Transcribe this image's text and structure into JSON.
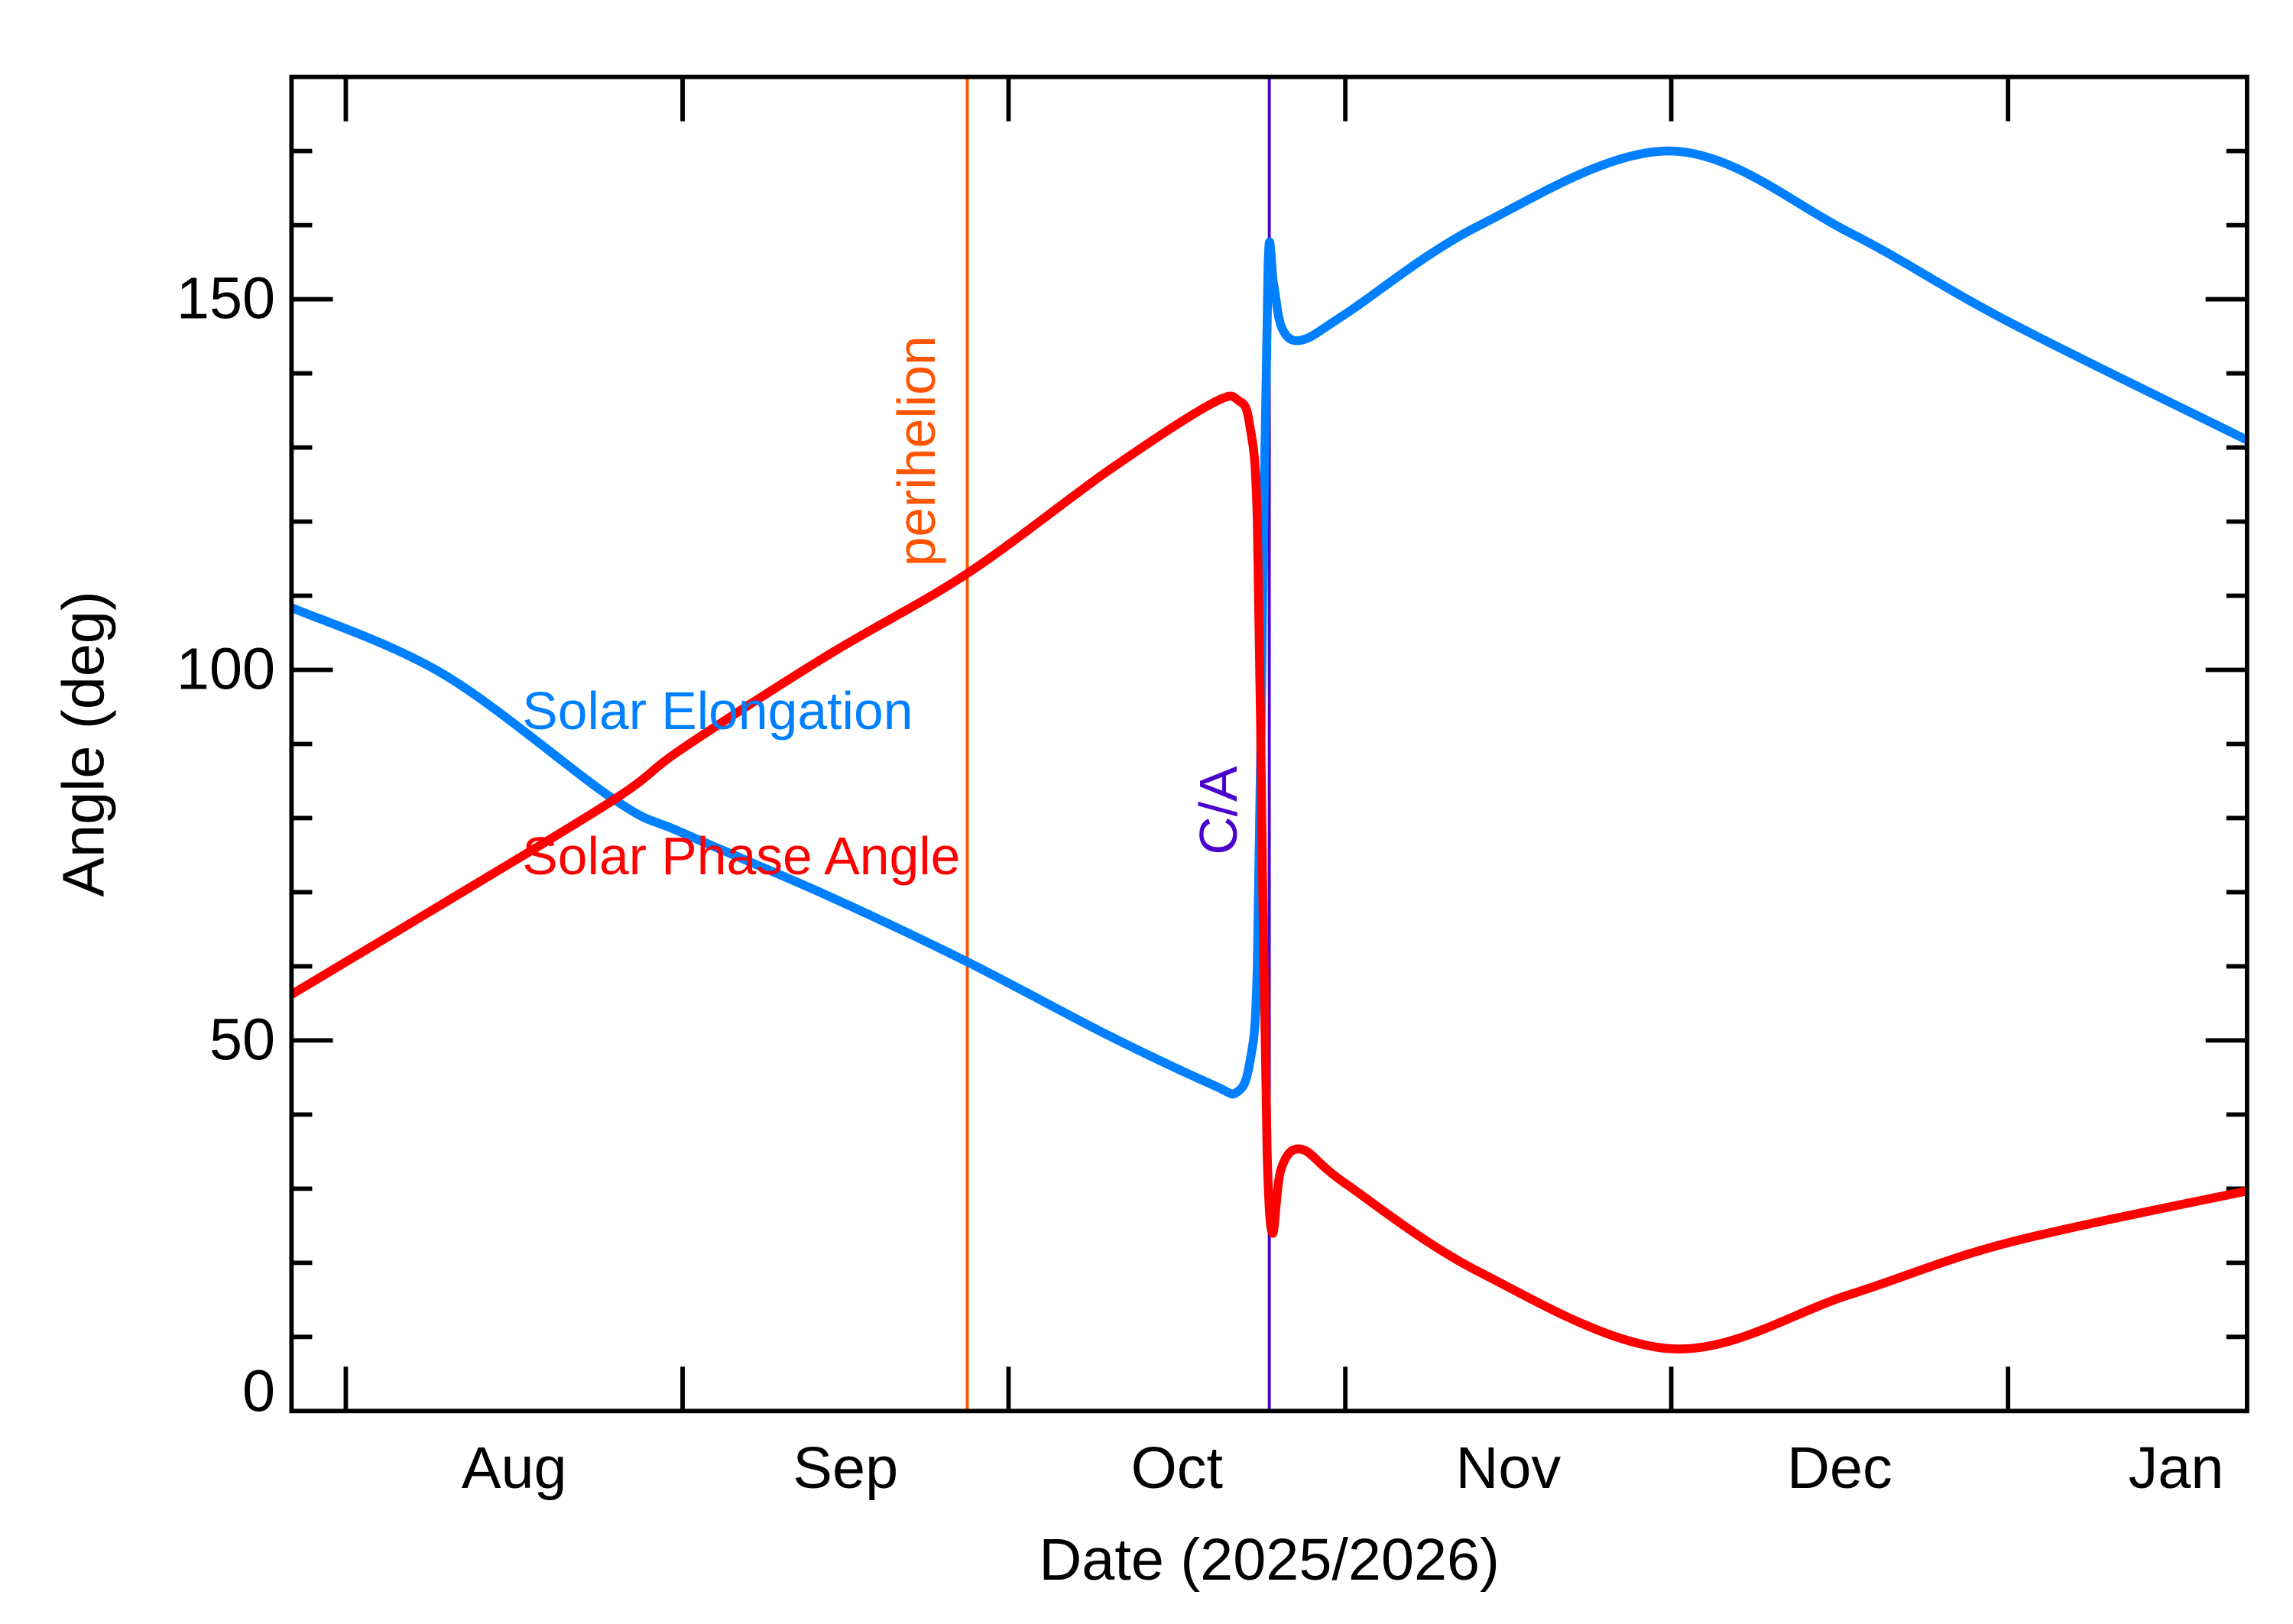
{
  "chart_data": {
    "type": "line",
    "title": "",
    "xlabel": "Date (2025/2026)",
    "ylabel": "Angle (deg)",
    "x_units": "days since 2025-07-27",
    "xlim": [
      0,
      180
    ],
    "ylim": [
      0,
      180
    ],
    "y_major_ticks": [
      0,
      50,
      100,
      150
    ],
    "y_minor_step": 10,
    "x_ticks": [
      {
        "label": "Aug",
        "start_day": 5,
        "end_day": 36
      },
      {
        "label": "Sep",
        "start_day": 36,
        "end_day": 66
      },
      {
        "label": "Oct",
        "start_day": 66,
        "end_day": 97
      },
      {
        "label": "Nov",
        "start_day": 97,
        "end_day": 127
      },
      {
        "label": "Dec",
        "start_day": 127,
        "end_day": 158
      },
      {
        "label": "Jan",
        "start_day": 158,
        "end_day": 189
      }
    ],
    "series": [
      {
        "name": "Solar Elongation",
        "color": "#0080FF",
        "x": [
          0,
          14,
          29.7,
          36,
          49.4,
          62.2,
          75.3,
          84.8,
          87,
          88.2,
          88.9,
          89.4,
          89.9,
          90.4,
          91.2,
          93,
          97,
          109.4,
          127,
          143.4,
          158,
          180
        ],
        "y": [
          108.4,
          99.4,
          82.5,
          78,
          69.5,
          60.6,
          50.6,
          44,
          43,
          47,
          60,
          110,
          155,
          152,
          146,
          144.5,
          148,
          160,
          170,
          159,
          147,
          131
        ]
      },
      {
        "name": "Solar Phase Angle",
        "color": "#FF0000",
        "x": [
          0,
          14,
          29.7,
          36,
          49.4,
          62.2,
          75.3,
          84.8,
          87.2,
          88.2,
          88.9,
          89.4,
          89.8,
          90.3,
          91.1,
          93,
          97,
          109.4,
          127,
          143.4,
          158,
          180
        ],
        "y": [
          56.2,
          68.5,
          82.5,
          89.4,
          102,
          113,
          127,
          136,
          136.3,
          133,
          120,
          70,
          35,
          24,
          32.7,
          35.3,
          30.7,
          18.7,
          8.4,
          15.7,
          22.7,
          29.7
        ]
      }
    ],
    "annotations": [
      {
        "label": "perihelion",
        "day": 62.2,
        "color": "#FF5500"
      },
      {
        "label": "C/A",
        "day": 90,
        "color": "#4B00CC"
      }
    ],
    "legend": [
      {
        "label": "Solar Elongation",
        "color": "#0080FF"
      },
      {
        "label": "Solar Phase Angle",
        "color": "#FF0000"
      }
    ],
    "legend_placement": "center-left",
    "grid": false
  }
}
